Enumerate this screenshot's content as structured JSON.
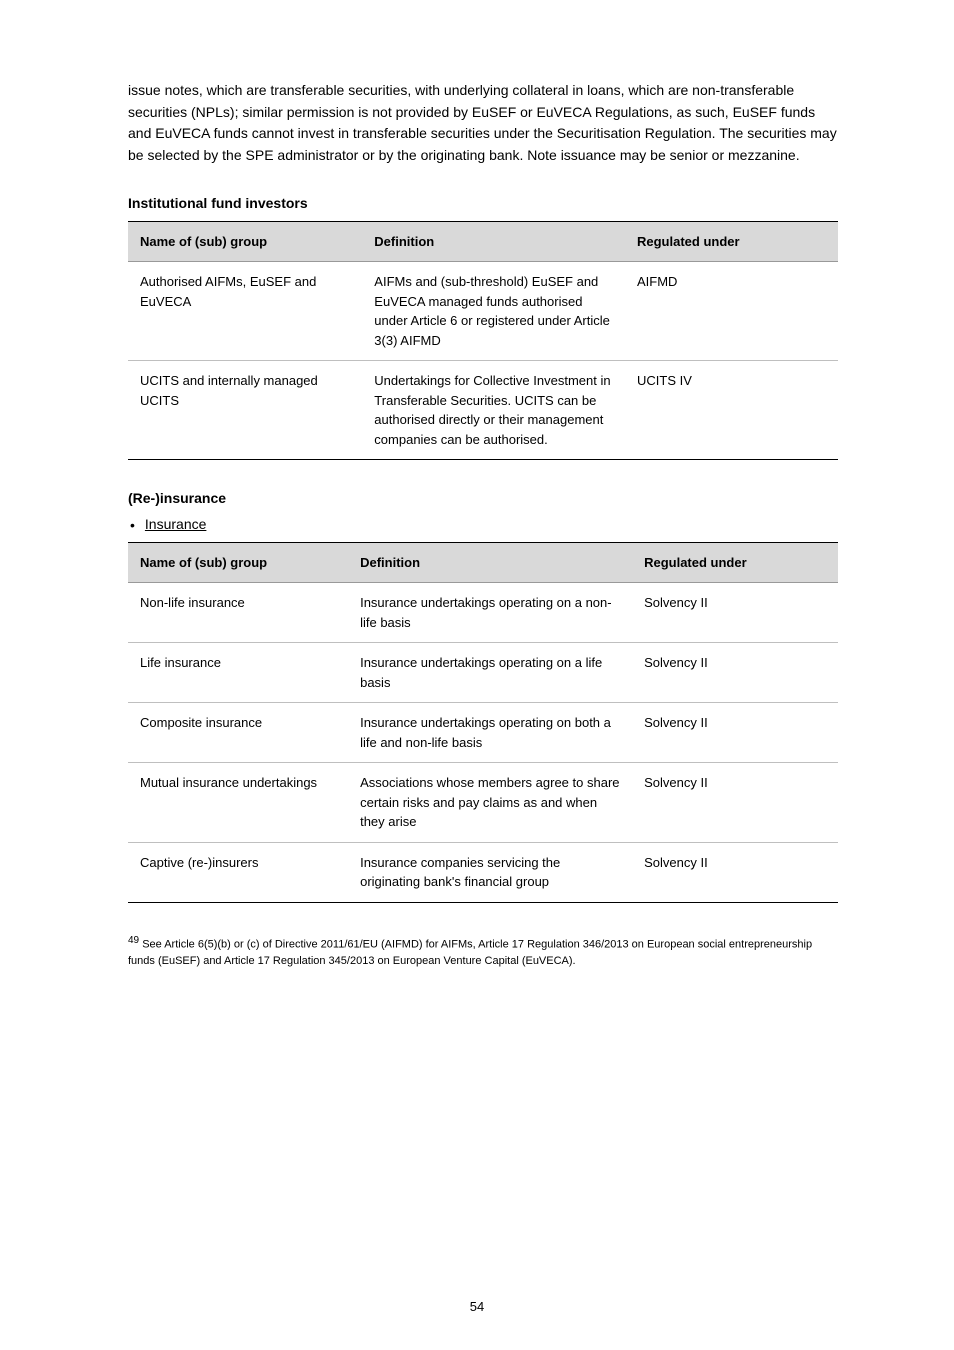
{
  "intro": "issue notes, which are transferable securities, with underlying collateral in loans, which are non-transferable securities (NPLs); similar permission is not provided by EuSEF or EuVECA Regulations, as such, EuSEF funds and EuVECA funds cannot invest in transferable securities under the Securitisation Regulation. The securities may be selected by the SPE administrator or by the originating bank. Note issuance may be senior or mezzanine.",
  "section1_title": "Institutional fund investors",
  "table1": {
    "columns": [
      "Name of (sub) group",
      "Definition",
      "Regulated under"
    ],
    "rows": [
      [
        "Authorised AIFMs, EuSEF and EuVECA",
        "AIFMs and (sub-threshold) EuSEF and EuVECA managed funds authorised under Article 6 or registered under Article 3(3) AIFMD",
        "AIFMD"
      ],
      [
        "UCITS and internally managed UCITS",
        "Undertakings for Collective Investment in Transferable Securities. UCITS can be authorised directly or their management companies can be authorised.",
        "UCITS IV"
      ]
    ]
  },
  "section2_title": "(Re-)insurance",
  "bullet_label": "Insurance",
  "table2": {
    "columns": [
      "Name of (sub) group",
      "Definition",
      "Regulated under"
    ],
    "rows": [
      [
        "Non-life insurance",
        "Insurance undertakings operating on a non-life basis",
        "Solvency II"
      ],
      [
        "Life insurance",
        "Insurance undertakings operating on a life basis",
        "Solvency II"
      ],
      [
        "Composite insurance",
        "Insurance undertakings operating on both a life and non-life basis",
        "Solvency II"
      ],
      [
        "Mutual insurance undertakings",
        "Associations whose members agree to share certain risks and pay claims as and when they arise",
        "Solvency II"
      ],
      [
        "Captive (re-)insurers",
        "Insurance companies servicing the originating bank's financial group",
        "Solvency II"
      ]
    ]
  },
  "footnote_marker": "49",
  "footnote_text": "See Article 6(5)(b) or (c) of Directive 2011/61/EU (AIFMD) for AIFMs, Article 17 Regulation 346/2013 on European social entrepreneurship funds (EuSEF) and Article 17 Regulation 345/2013 on European Venture Capital (EuVECA).",
  "table_styles": {
    "header_bg": "#d9d9d9",
    "border_color": "#bfbfbf",
    "top_border_color": "#000000",
    "font_size_body": 13,
    "font_size_header": 13
  },
  "page_number": "54"
}
